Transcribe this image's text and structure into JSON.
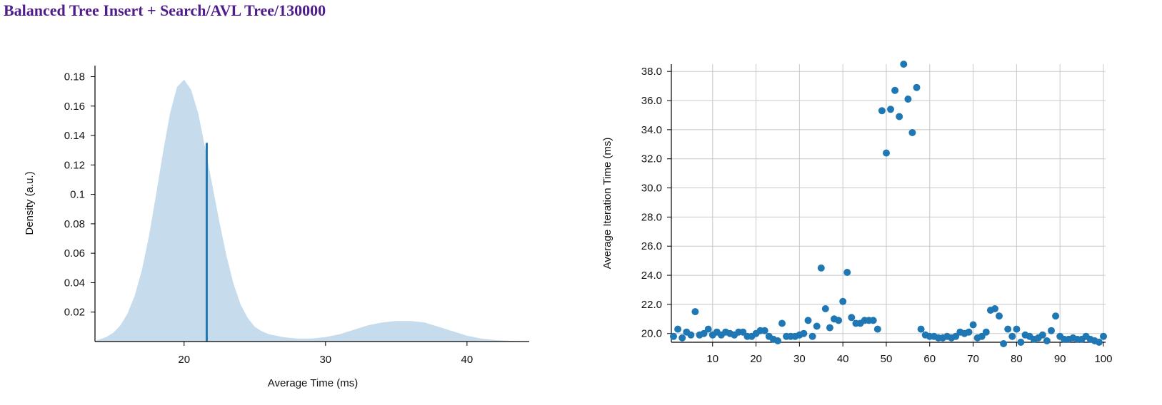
{
  "page": {
    "title": "Balanced Tree Insert + Search/AVL Tree/130000"
  },
  "colors": {
    "title": "#4f1d8a",
    "density_fill": "#c6dcec",
    "mean_line": "#1f77b4",
    "points": "#1f77b4",
    "grid": "#c8c8c8"
  },
  "chart_data": [
    {
      "type": "area",
      "title": "",
      "xlabel": "Average Time (ms)",
      "ylabel": "Density (a.u.)",
      "xlim": [
        13.7,
        44.4
      ],
      "ylim": [
        0,
        0.1875
      ],
      "xticks": [
        20,
        30,
        40
      ],
      "xtick_labels": [
        "20",
        "30",
        "40"
      ],
      "yticks": [
        0.02,
        0.04,
        0.06,
        0.08,
        0.1,
        0.12,
        0.14,
        0.16,
        0.18
      ],
      "ytick_labels": [
        "0.02",
        "0.04",
        "0.06",
        "0.08",
        "0.1",
        "0.12",
        "0.14",
        "0.16",
        "0.18"
      ],
      "grid": false,
      "series": [
        {
          "role": "density",
          "x": [
            13.7,
            14.5,
            15,
            15.5,
            16,
            16.5,
            17,
            17.5,
            18,
            18.5,
            19,
            19.5,
            20,
            20.5,
            21,
            21.5,
            22,
            22.5,
            23,
            23.5,
            24,
            24.5,
            25,
            25.5,
            26,
            27,
            28,
            29,
            30,
            31,
            32,
            33,
            34,
            35,
            35.5,
            36,
            37,
            38,
            39,
            40,
            41,
            42,
            43,
            44.4
          ],
          "y": [
            0.0005,
            0.003,
            0.006,
            0.011,
            0.019,
            0.031,
            0.048,
            0.071,
            0.099,
            0.128,
            0.155,
            0.173,
            0.178,
            0.171,
            0.155,
            0.131,
            0.106,
            0.081,
            0.058,
            0.039,
            0.025,
            0.016,
            0.01,
            0.007,
            0.005,
            0.003,
            0.002,
            0.002,
            0.003,
            0.005,
            0.008,
            0.011,
            0.013,
            0.014,
            0.014,
            0.014,
            0.013,
            0.01,
            0.007,
            0.004,
            0.002,
            0.001,
            0.0005,
            0.0002
          ]
        },
        {
          "role": "mean",
          "x": [
            21.6,
            21.6
          ],
          "y": [
            0,
            0.135
          ]
        }
      ]
    },
    {
      "type": "scatter",
      "title": "",
      "xlabel": "",
      "ylabel": "Average Iteration Time (ms)",
      "xlim": [
        0.5,
        100.5
      ],
      "ylim": [
        19.4,
        38.5
      ],
      "xticks": [
        10,
        20,
        30,
        40,
        50,
        60,
        70,
        80,
        90,
        100
      ],
      "xtick_labels": [
        "10",
        "20",
        "30",
        "40",
        "50",
        "60",
        "70",
        "80",
        "90",
        "100"
      ],
      "yticks": [
        20,
        22,
        24,
        26,
        28,
        30,
        32,
        34,
        36,
        38
      ],
      "ytick_labels": [
        "20.0",
        "22.0",
        "24.0",
        "26.0",
        "28.0",
        "30.0",
        "32.0",
        "34.0",
        "36.0",
        "38.0"
      ],
      "grid": true,
      "series": [
        {
          "x": [
            1,
            2,
            3,
            4,
            5,
            6,
            7,
            8,
            9,
            10,
            11,
            12,
            13,
            14,
            15,
            16,
            17,
            18,
            19,
            20,
            21,
            22,
            23,
            24,
            25,
            26,
            27,
            28,
            29,
            30,
            31,
            32,
            33,
            34,
            35,
            36,
            37,
            38,
            39,
            40,
            41,
            42,
            43,
            44,
            45,
            46,
            47,
            48,
            49,
            50,
            51,
            52,
            53,
            54,
            55,
            56,
            57,
            58,
            59,
            60,
            61,
            62,
            63,
            64,
            65,
            66,
            67,
            68,
            69,
            70,
            71,
            72,
            73,
            74,
            75,
            76,
            77,
            78,
            79,
            80,
            81,
            82,
            83,
            84,
            85,
            86,
            87,
            88,
            89,
            90,
            91,
            92,
            93,
            94,
            95,
            96,
            97,
            98,
            99,
            100
          ],
          "y": [
            19.8,
            20.3,
            19.7,
            20.1,
            19.9,
            21.5,
            19.9,
            20.0,
            20.3,
            19.9,
            20.1,
            19.9,
            20.1,
            20.0,
            19.9,
            20.1,
            20.1,
            19.8,
            19.8,
            20.0,
            20.2,
            20.2,
            19.8,
            19.6,
            19.5,
            20.7,
            19.8,
            19.8,
            19.8,
            19.9,
            20.0,
            20.9,
            19.8,
            20.5,
            24.5,
            21.7,
            20.4,
            21.0,
            20.9,
            22.2,
            24.2,
            21.1,
            20.7,
            20.7,
            20.9,
            20.9,
            20.9,
            20.3,
            35.3,
            32.4,
            35.4,
            36.7,
            34.9,
            38.5,
            36.1,
            33.8,
            36.9,
            20.3,
            19.9,
            19.8,
            19.8,
            19.7,
            19.7,
            19.8,
            19.7,
            19.8,
            20.1,
            20.0,
            20.1,
            20.6,
            19.7,
            19.8,
            20.1,
            21.6,
            21.7,
            21.2,
            19.3,
            20.3,
            19.8,
            20.3,
            19.4,
            19.9,
            19.8,
            19.6,
            19.7,
            19.9,
            19.5,
            20.2,
            21.2,
            19.8,
            19.6,
            19.6,
            19.7,
            19.6,
            19.6,
            19.8,
            19.6,
            19.5,
            19.4,
            19.8
          ]
        }
      ]
    }
  ]
}
